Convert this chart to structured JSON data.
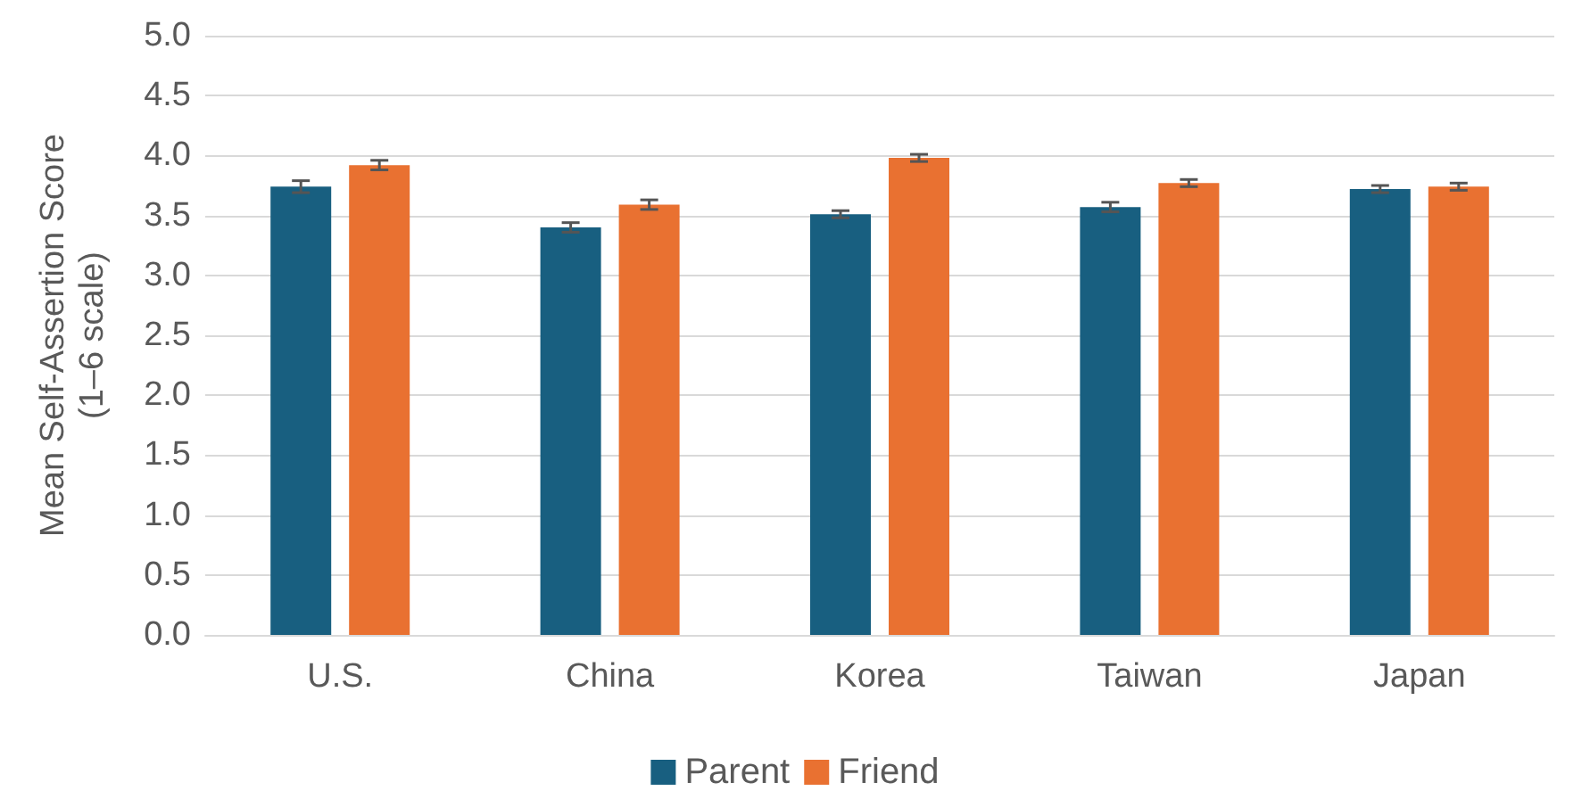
{
  "chart_data": {
    "type": "bar",
    "ylabel": "Mean Self-Assertion Score\n(1–6 scale)",
    "categories": [
      "U.S.",
      "China",
      "Korea",
      "Taiwan",
      "Japan"
    ],
    "series": [
      {
        "name": "Parent",
        "color": "#185f80",
        "values": [
          3.74,
          3.4,
          3.51,
          3.57,
          3.72
        ],
        "errors": [
          0.05,
          0.04,
          0.03,
          0.04,
          0.03
        ]
      },
      {
        "name": "Friend",
        "color": "#e97131",
        "values": [
          3.92,
          3.59,
          3.98,
          3.77,
          3.74
        ],
        "errors": [
          0.04,
          0.04,
          0.03,
          0.03,
          0.03
        ]
      }
    ],
    "ylim": [
      0,
      5
    ],
    "yticks": [
      {
        "value": 0,
        "label": "0.0"
      },
      {
        "value": 0.5,
        "label": "0.5"
      },
      {
        "value": 1,
        "label": "1.0"
      },
      {
        "value": 1.5,
        "label": "1.5"
      },
      {
        "value": 2,
        "label": "2.0"
      },
      {
        "value": 2.5,
        "label": "2.5"
      },
      {
        "value": 3,
        "label": "3.0"
      },
      {
        "value": 3.5,
        "label": "3.5"
      },
      {
        "value": 4,
        "label": "4.0"
      },
      {
        "value": 4.5,
        "label": "4.5"
      },
      {
        "value": 5,
        "label": "5.0"
      }
    ],
    "grid": "y",
    "legend": "bottom"
  }
}
